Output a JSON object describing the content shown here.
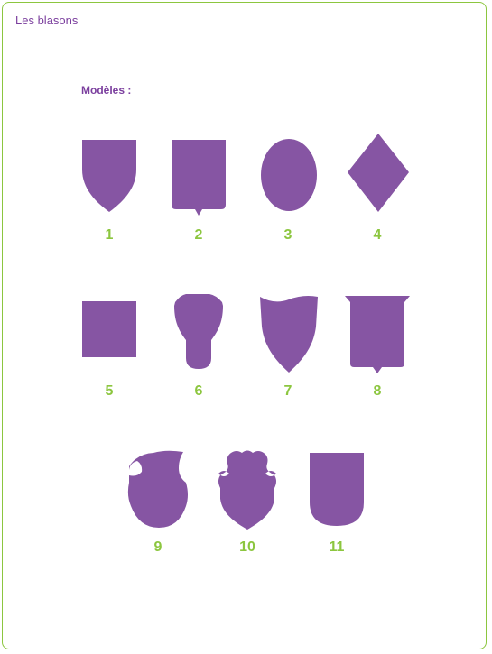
{
  "page": {
    "title": "Les blasons",
    "section_label": "Modèles :"
  },
  "colors": {
    "border": "#8cc63f",
    "shape_fill": "#8655a3",
    "numbers": "#8cc63f",
    "text": "#7b3f9e"
  },
  "models": [
    {
      "number": "1",
      "shape": "shield-pointed"
    },
    {
      "number": "2",
      "shape": "rectangle-notched"
    },
    {
      "number": "3",
      "shape": "oval"
    },
    {
      "number": "4",
      "shape": "diamond"
    },
    {
      "number": "5",
      "shape": "square"
    },
    {
      "number": "6",
      "shape": "bottle"
    },
    {
      "number": "7",
      "shape": "shield-wavy-top"
    },
    {
      "number": "8",
      "shape": "rectangle-flared-notched"
    },
    {
      "number": "9",
      "shape": "round-cutout"
    },
    {
      "number": "10",
      "shape": "shield-scalloped"
    },
    {
      "number": "11",
      "shape": "shield-rounded"
    }
  ]
}
